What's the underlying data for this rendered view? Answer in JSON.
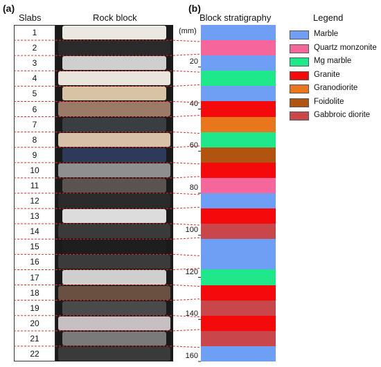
{
  "panels": {
    "a_label": "(a)",
    "b_label": "(b)"
  },
  "headers": {
    "slabs": "Slabs",
    "rock_block": "Rock block",
    "stratigraphy": "Block stratigraphy",
    "legend": "Legend",
    "unit": "(mm)"
  },
  "slabs": [
    "1",
    "2",
    "3",
    "4",
    "5",
    "6",
    "7",
    "8",
    "9",
    "10",
    "11",
    "12",
    "13",
    "14",
    "15",
    "16",
    "17",
    "18",
    "19",
    "20",
    "21",
    "22"
  ],
  "depth_ticks": [
    "20",
    "40",
    "60",
    "80",
    "100",
    "120",
    "140",
    "160"
  ],
  "legend": [
    {
      "label": "Marble",
      "color": "#6f9ef5"
    },
    {
      "label": "Quartz monzonite",
      "color": "#f5679a"
    },
    {
      "label": "Mg marble",
      "color": "#1ee88a"
    },
    {
      "label": "Granite",
      "color": "#f40a0a"
    },
    {
      "label": "Granodiorite",
      "color": "#e8761c"
    },
    {
      "label": "Foidolite",
      "color": "#b05410"
    },
    {
      "label": "Gabbroic diorite",
      "color": "#c9474a"
    }
  ],
  "stratigraphy": [
    "Marble",
    "Quartz monzonite",
    "Marble",
    "Mg marble",
    "Marble",
    "Granite",
    "Granodiorite",
    "Mg marble",
    "Foidolite",
    "Granite",
    "Quartz monzonite",
    "Marble",
    "Granite",
    "Gabbroic diorite",
    "Marble",
    "Marble",
    "Mg marble",
    "Granite",
    "Gabbroic diorite",
    "Granite",
    "Gabbroic diorite",
    "Marble"
  ],
  "rock_colors": [
    "#ebe8e2",
    "#2a2a2a",
    "#cfcfcf",
    "#e9e4dc",
    "#d9c3a5",
    "#9b7a68",
    "#3a3d42",
    "#d8c0a8",
    "#2d3a5a",
    "#8f8f8f",
    "#5a5450",
    "#2a2a2a",
    "#dcdcdc",
    "#3a3a3a",
    "#1e1e1e",
    "#3b3b3b",
    "#cfcfcf",
    "#6a5040",
    "#4a4a4a",
    "#c8bfc2",
    "#7a7a7a",
    "#3a3a3a"
  ]
}
